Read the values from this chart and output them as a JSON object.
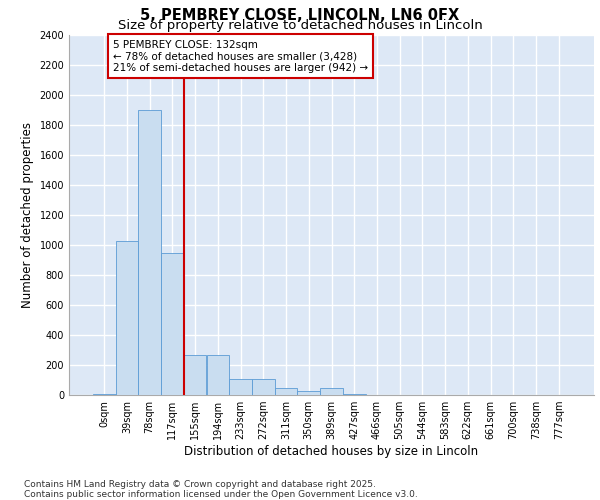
{
  "title_line1": "5, PEMBREY CLOSE, LINCOLN, LN6 0FX",
  "title_line2": "Size of property relative to detached houses in Lincoln",
  "xlabel": "Distribution of detached houses by size in Lincoln",
  "ylabel": "Number of detached properties",
  "bar_color": "#c9ddf0",
  "bar_edge_color": "#5b9bd5",
  "background_color": "#dde8f6",
  "grid_color": "#ffffff",
  "annotation_edge_color": "#cc0000",
  "annotation_text": "5 PEMBREY CLOSE: 132sqm\n← 78% of detached houses are smaller (3,428)\n21% of semi-detached houses are larger (942) →",
  "red_line_x": 3.5,
  "ylim": [
    0,
    2400
  ],
  "yticks": [
    0,
    200,
    400,
    600,
    800,
    1000,
    1200,
    1400,
    1600,
    1800,
    2000,
    2200,
    2400
  ],
  "categories": [
    "0sqm",
    "39sqm",
    "78sqm",
    "117sqm",
    "155sqm",
    "194sqm",
    "233sqm",
    "272sqm",
    "311sqm",
    "350sqm",
    "389sqm",
    "427sqm",
    "466sqm",
    "505sqm",
    "544sqm",
    "583sqm",
    "622sqm",
    "661sqm",
    "700sqm",
    "738sqm",
    "777sqm"
  ],
  "values": [
    10,
    1025,
    1900,
    950,
    270,
    270,
    110,
    110,
    50,
    30,
    50,
    10,
    0,
    0,
    0,
    0,
    0,
    0,
    0,
    0,
    0
  ],
  "footer_text": "Contains HM Land Registry data © Crown copyright and database right 2025.\nContains public sector information licensed under the Open Government Licence v3.0.",
  "title_fontsize": 10.5,
  "subtitle_fontsize": 9.5,
  "tick_fontsize": 7,
  "ylabel_fontsize": 8.5,
  "xlabel_fontsize": 8.5,
  "annotation_fontsize": 7.5,
  "footer_fontsize": 6.5
}
